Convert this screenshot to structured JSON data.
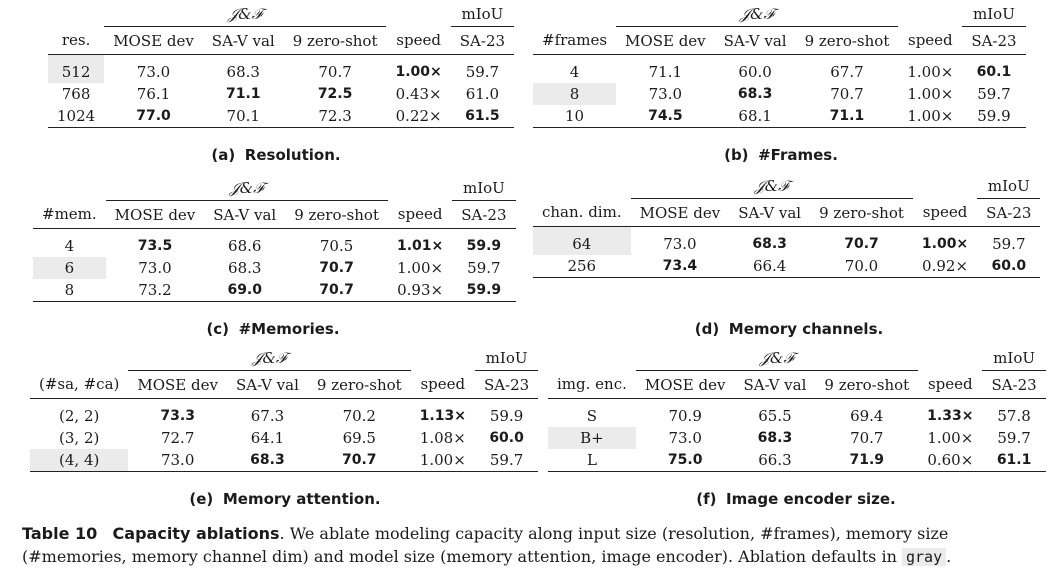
{
  "tables": [
    {
      "group_label": "𝒥&ℱ",
      "miou_label": "mIoU",
      "headers": [
        "res.",
        "MOSE dev",
        "SA-V val",
        "9 zero-shot",
        "speed",
        "SA-23"
      ],
      "rows": [
        {
          "cells": [
            "512",
            "73.0",
            "68.3",
            "70.7",
            "1.00×",
            "59.7"
          ],
          "bold": [
            false,
            false,
            false,
            false,
            true,
            false
          ],
          "gray": true
        },
        {
          "cells": [
            "768",
            "76.1",
            "71.1",
            "72.5",
            "0.43×",
            "61.0"
          ],
          "bold": [
            false,
            false,
            true,
            true,
            false,
            false
          ],
          "gray": false
        },
        {
          "cells": [
            "1024",
            "77.0",
            "70.1",
            "72.3",
            "0.22×",
            "61.5"
          ],
          "bold": [
            false,
            true,
            false,
            false,
            false,
            true
          ],
          "gray": false
        }
      ],
      "caption_label": "(a)",
      "caption_text": "Resolution."
    },
    {
      "group_label": "𝒥&ℱ",
      "miou_label": "mIoU",
      "headers": [
        "#frames",
        "MOSE dev",
        "SA-V val",
        "9 zero-shot",
        "speed",
        "SA-23"
      ],
      "rows": [
        {
          "cells": [
            "4",
            "71.1",
            "60.0",
            "67.7",
            "1.00×",
            "60.1"
          ],
          "bold": [
            false,
            false,
            false,
            false,
            false,
            true
          ],
          "gray": false
        },
        {
          "cells": [
            "8",
            "73.0",
            "68.3",
            "70.7",
            "1.00×",
            "59.7"
          ],
          "bold": [
            false,
            false,
            true,
            false,
            false,
            false
          ],
          "gray": true
        },
        {
          "cells": [
            "10",
            "74.5",
            "68.1",
            "71.1",
            "1.00×",
            "59.9"
          ],
          "bold": [
            false,
            true,
            false,
            true,
            false,
            false
          ],
          "gray": false
        }
      ],
      "caption_label": "(b)",
      "caption_text": "#Frames."
    },
    {
      "group_label": "𝒥&ℱ",
      "miou_label": "mIoU",
      "headers": [
        "#mem.",
        "MOSE dev",
        "SA-V val",
        "9 zero-shot",
        "speed",
        "SA-23"
      ],
      "rows": [
        {
          "cells": [
            "4",
            "73.5",
            "68.6",
            "70.5",
            "1.01×",
            "59.9"
          ],
          "bold": [
            false,
            true,
            false,
            false,
            true,
            true
          ],
          "gray": false
        },
        {
          "cells": [
            "6",
            "73.0",
            "68.3",
            "70.7",
            "1.00×",
            "59.7"
          ],
          "bold": [
            false,
            false,
            false,
            true,
            false,
            false
          ],
          "gray": true
        },
        {
          "cells": [
            "8",
            "73.2",
            "69.0",
            "70.7",
            "0.93×",
            "59.9"
          ],
          "bold": [
            false,
            false,
            true,
            true,
            false,
            true
          ],
          "gray": false
        }
      ],
      "caption_label": "(c)",
      "caption_text": "#Memories."
    },
    {
      "group_label": "𝒥&ℱ",
      "miou_label": "mIoU",
      "headers": [
        "chan. dim.",
        "MOSE dev",
        "SA-V val",
        "9 zero-shot",
        "speed",
        "SA-23"
      ],
      "rows": [
        {
          "cells": [
            "64",
            "73.0",
            "68.3",
            "70.7",
            "1.00×",
            "59.7"
          ],
          "bold": [
            false,
            false,
            true,
            true,
            true,
            false
          ],
          "gray": true
        },
        {
          "cells": [
            "256",
            "73.4",
            "66.4",
            "70.0",
            "0.92×",
            "60.0"
          ],
          "bold": [
            false,
            true,
            false,
            false,
            false,
            true
          ],
          "gray": false
        }
      ],
      "caption_label": "(d)",
      "caption_text": "Memory channels."
    },
    {
      "group_label": "𝒥&ℱ",
      "miou_label": "mIoU",
      "headers": [
        "(#sa, #ca)",
        "MOSE dev",
        "SA-V val",
        "9 zero-shot",
        "speed",
        "SA-23"
      ],
      "rows": [
        {
          "cells": [
            "(2, 2)",
            "73.3",
            "67.3",
            "70.2",
            "1.13×",
            "59.9"
          ],
          "bold": [
            false,
            true,
            false,
            false,
            true,
            false
          ],
          "gray": false
        },
        {
          "cells": [
            "(3, 2)",
            "72.7",
            "64.1",
            "69.5",
            "1.08×",
            "60.0"
          ],
          "bold": [
            false,
            false,
            false,
            false,
            false,
            true
          ],
          "gray": false
        },
        {
          "cells": [
            "(4, 4)",
            "73.0",
            "68.3",
            "70.7",
            "1.00×",
            "59.7"
          ],
          "bold": [
            false,
            false,
            true,
            true,
            false,
            false
          ],
          "gray": true
        }
      ],
      "caption_label": "(e)",
      "caption_text": "Memory attention."
    },
    {
      "group_label": "𝒥&ℱ",
      "miou_label": "mIoU",
      "headers": [
        "img. enc.",
        "MOSE dev",
        "SA-V val",
        "9 zero-shot",
        "speed",
        "SA-23"
      ],
      "rows": [
        {
          "cells": [
            "S",
            "70.9",
            "65.5",
            "69.4",
            "1.33×",
            "57.8"
          ],
          "bold": [
            false,
            false,
            false,
            false,
            true,
            false
          ],
          "gray": false
        },
        {
          "cells": [
            "B+",
            "73.0",
            "68.3",
            "70.7",
            "1.00×",
            "59.7"
          ],
          "bold": [
            false,
            false,
            true,
            false,
            false,
            false
          ],
          "gray": true
        },
        {
          "cells": [
            "L",
            "75.0",
            "66.3",
            "71.9",
            "0.60×",
            "61.1"
          ],
          "bold": [
            false,
            true,
            false,
            true,
            false,
            true
          ],
          "gray": false
        }
      ],
      "caption_label": "(f)",
      "caption_text": "Image encoder size."
    }
  ],
  "footer": {
    "table_name": "Table 10",
    "title": "Capacity ablations",
    "body": ". We ablate modeling capacity along input size (resolution, #frames), memory size (#memories, memory channel dim) and model size (memory attention, image encoder). Ablation defaults in ",
    "gray_word": "gray",
    "end": "."
  }
}
